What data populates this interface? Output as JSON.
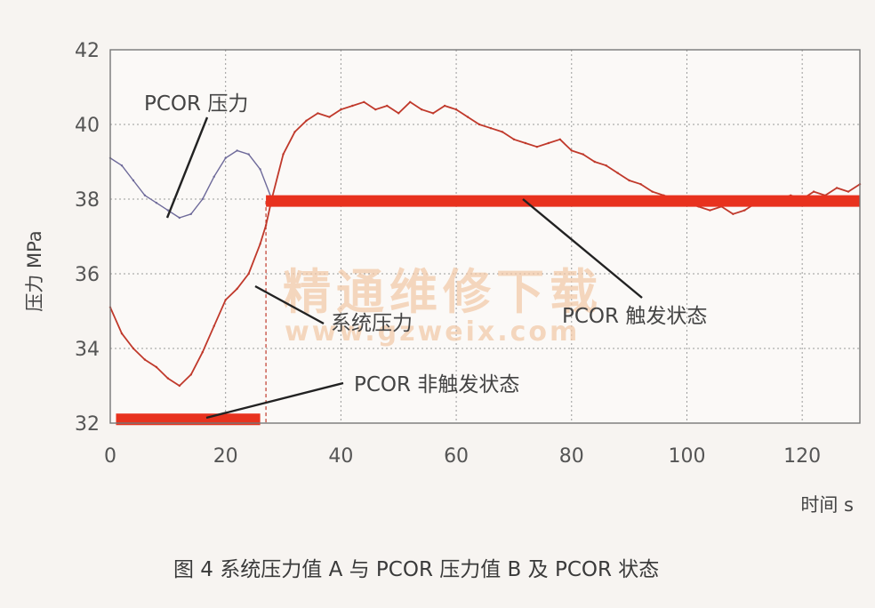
{
  "chart_data": {
    "type": "line",
    "xlabel": "时间  s",
    "ylabel": "压力 MPa",
    "xlim": [
      0,
      130
    ],
    "ylim": [
      32,
      42
    ],
    "x_ticks": [
      "0",
      "20",
      "40",
      "60",
      "80",
      "100",
      "120"
    ],
    "y_ticks": [
      "32",
      "34",
      "36",
      "38",
      "40",
      "42"
    ],
    "grid": "dotted",
    "caption": "图 4   系统压力值 A 与 PCOR 压力值 B 及 PCOR 状态",
    "annotations": {
      "pcor_pressure": "PCOR 压力",
      "system_pressure": "系统压力",
      "pcor_triggered": "PCOR 触发状态",
      "pcor_not_triggered": "PCOR 非触发状态"
    },
    "watermark": {
      "text": "精通维修下载",
      "url": "www.gzweix.com"
    },
    "series": [
      {
        "key": "pcor_pressure",
        "color": "#6e6a9a",
        "x": [
          0,
          2,
          4,
          6,
          8,
          10,
          12,
          14,
          16,
          18,
          20,
          22,
          24,
          26,
          28
        ],
        "y": [
          39.1,
          38.9,
          38.5,
          38.1,
          37.9,
          37.7,
          37.5,
          37.6,
          38.0,
          38.6,
          39.1,
          39.3,
          39.2,
          38.8,
          38.0
        ]
      },
      {
        "key": "system_pressure",
        "color": "#c0392b",
        "x": [
          0,
          2,
          4,
          6,
          8,
          10,
          12,
          14,
          16,
          18,
          20,
          22,
          24,
          26,
          27,
          28,
          30,
          32,
          34,
          36,
          38,
          40,
          42,
          44,
          46,
          48,
          50,
          52,
          54,
          56,
          58,
          60,
          62,
          64,
          66,
          68,
          70,
          72,
          74,
          76,
          78,
          80,
          82,
          84,
          86,
          88,
          90,
          92,
          94,
          96,
          98,
          100,
          102,
          104,
          106,
          108,
          110,
          112,
          114,
          116,
          118,
          120,
          122,
          124,
          126,
          128,
          130
        ],
        "y": [
          35.1,
          34.4,
          34.0,
          33.7,
          33.5,
          33.2,
          33.0,
          33.3,
          33.9,
          34.6,
          35.3,
          35.6,
          36.0,
          36.8,
          37.3,
          38.0,
          39.2,
          39.8,
          40.1,
          40.3,
          40.2,
          40.4,
          40.5,
          40.6,
          40.4,
          40.5,
          40.3,
          40.6,
          40.4,
          40.3,
          40.5,
          40.4,
          40.2,
          40.0,
          39.9,
          39.8,
          39.6,
          39.5,
          39.4,
          39.5,
          39.6,
          39.3,
          39.2,
          39.0,
          38.9,
          38.7,
          38.5,
          38.4,
          38.2,
          38.1,
          38.0,
          37.9,
          37.8,
          37.7,
          37.8,
          37.6,
          37.7,
          37.9,
          38.0,
          38.0,
          38.1,
          38.0,
          38.2,
          38.1,
          38.3,
          38.2,
          38.4
        ]
      },
      {
        "key": "pcor_state",
        "color": "#e8321e",
        "segments": [
          {
            "x": [
              1,
              26
            ],
            "y": 32.1
          },
          {
            "x": [
              27,
              130
            ],
            "y": 37.95
          }
        ]
      }
    ]
  }
}
